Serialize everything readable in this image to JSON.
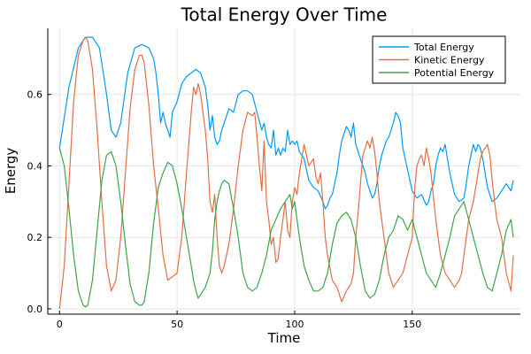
{
  "chart_data": {
    "type": "line",
    "title": "Total Energy Over Time",
    "xlabel": "Time",
    "ylabel": "Energy",
    "xlim": [
      -5,
      196
    ],
    "ylim": [
      -0.015,
      0.785
    ],
    "xticks": [
      0,
      50,
      100,
      150
    ],
    "yticks": [
      0.0,
      0.2,
      0.4,
      0.6
    ],
    "x_tick_labels": [
      "0",
      "50",
      "100",
      "150"
    ],
    "y_tick_labels": [
      "0.0",
      "0.2",
      "0.4",
      "0.6"
    ],
    "grid": true,
    "legend_position": "top-right",
    "series": [
      {
        "name": "Total Energy",
        "color": "#009AFA",
        "x": [
          0,
          4,
          8,
          11,
          14,
          17,
          20,
          22,
          24,
          26,
          29,
          32,
          35,
          38,
          40,
          41,
          42,
          43,
          44,
          45,
          46,
          47,
          48,
          50,
          52,
          54,
          56,
          58,
          60,
          61,
          62,
          63,
          64,
          65,
          66,
          67,
          68,
          69,
          70,
          72,
          74,
          76,
          78,
          80,
          82,
          84,
          86,
          87,
          88,
          89,
          90,
          91,
          92,
          93,
          94,
          95,
          96,
          97,
          98,
          99,
          100,
          101,
          102,
          103,
          104,
          106,
          108,
          110,
          112,
          113,
          114,
          115,
          116,
          117,
          118,
          119,
          120,
          121,
          122,
          123,
          124,
          125,
          126,
          128,
          130,
          131,
          132,
          133,
          134,
          135,
          136,
          137,
          138,
          139,
          140,
          141,
          142,
          143,
          144,
          145,
          146,
          147,
          148,
          149,
          150,
          152,
          154,
          156,
          157,
          158,
          159,
          160,
          161,
          162,
          163,
          164,
          165,
          166,
          168,
          170,
          172,
          173,
          174,
          175,
          176,
          177,
          178,
          179,
          180,
          181,
          182,
          184,
          186,
          188,
          190,
          192,
          193
        ],
        "values": [
          0.45,
          0.62,
          0.73,
          0.76,
          0.76,
          0.73,
          0.6,
          0.5,
          0.48,
          0.52,
          0.66,
          0.73,
          0.74,
          0.73,
          0.7,
          0.66,
          0.6,
          0.52,
          0.55,
          0.52,
          0.5,
          0.48,
          0.55,
          0.58,
          0.63,
          0.65,
          0.66,
          0.67,
          0.66,
          0.64,
          0.62,
          0.57,
          0.5,
          0.54,
          0.48,
          0.46,
          0.47,
          0.5,
          0.52,
          0.56,
          0.55,
          0.6,
          0.61,
          0.61,
          0.6,
          0.55,
          0.5,
          0.52,
          0.48,
          0.46,
          0.45,
          0.5,
          0.43,
          0.45,
          0.43,
          0.45,
          0.44,
          0.5,
          0.46,
          0.47,
          0.46,
          0.47,
          0.44,
          0.43,
          0.42,
          0.36,
          0.34,
          0.33,
          0.3,
          0.28,
          0.29,
          0.31,
          0.32,
          0.35,
          0.38,
          0.43,
          0.47,
          0.49,
          0.51,
          0.5,
          0.48,
          0.52,
          0.46,
          0.42,
          0.38,
          0.35,
          0.33,
          0.31,
          0.32,
          0.35,
          0.4,
          0.43,
          0.45,
          0.47,
          0.48,
          0.5,
          0.52,
          0.55,
          0.54,
          0.52,
          0.45,
          0.42,
          0.39,
          0.36,
          0.33,
          0.31,
          0.32,
          0.29,
          0.3,
          0.33,
          0.35,
          0.4,
          0.43,
          0.45,
          0.44,
          0.46,
          0.42,
          0.38,
          0.32,
          0.3,
          0.31,
          0.35,
          0.4,
          0.43,
          0.46,
          0.44,
          0.46,
          0.45,
          0.42,
          0.38,
          0.34,
          0.3,
          0.31,
          0.33,
          0.35,
          0.33,
          0.36
        ]
      },
      {
        "name": "Kinetic Energy",
        "color": "#E26F46",
        "x": [
          0,
          2,
          4,
          6,
          8,
          10,
          11,
          12,
          14,
          16,
          18,
          20,
          22,
          24,
          26,
          28,
          30,
          32,
          34,
          35,
          36,
          38,
          40,
          42,
          44,
          46,
          48,
          50,
          52,
          54,
          56,
          57,
          58,
          59,
          60,
          61,
          62,
          63,
          64,
          65,
          66,
          67,
          68,
          69,
          70,
          72,
          74,
          76,
          78,
          80,
          82,
          83,
          84,
          85,
          86,
          87,
          88,
          89,
          90,
          91,
          92,
          93,
          94,
          95,
          96,
          97,
          98,
          99,
          100,
          101,
          102,
          104,
          106,
          108,
          109,
          110,
          111,
          112,
          113,
          114,
          116,
          118,
          120,
          122,
          124,
          125,
          126,
          127,
          128,
          129,
          130,
          131,
          132,
          133,
          134,
          135,
          136,
          138,
          140,
          142,
          144,
          146,
          148,
          150,
          151,
          152,
          153,
          154,
          155,
          156,
          157,
          158,
          160,
          162,
          164,
          166,
          168,
          169,
          170,
          171,
          172,
          173,
          174,
          176,
          178,
          179,
          180,
          181,
          182,
          183,
          184,
          185,
          186,
          188,
          190,
          192,
          193
        ],
        "values": [
          0.0,
          0.12,
          0.35,
          0.58,
          0.71,
          0.75,
          0.76,
          0.75,
          0.67,
          0.5,
          0.3,
          0.12,
          0.05,
          0.08,
          0.2,
          0.38,
          0.56,
          0.67,
          0.71,
          0.71,
          0.69,
          0.57,
          0.4,
          0.28,
          0.15,
          0.08,
          0.09,
          0.1,
          0.2,
          0.38,
          0.55,
          0.62,
          0.6,
          0.63,
          0.6,
          0.55,
          0.5,
          0.42,
          0.3,
          0.27,
          0.32,
          0.2,
          0.12,
          0.1,
          0.12,
          0.18,
          0.28,
          0.4,
          0.5,
          0.55,
          0.54,
          0.55,
          0.48,
          0.4,
          0.33,
          0.47,
          0.3,
          0.25,
          0.18,
          0.2,
          0.13,
          0.14,
          0.2,
          0.25,
          0.3,
          0.22,
          0.2,
          0.3,
          0.34,
          0.32,
          0.38,
          0.46,
          0.4,
          0.42,
          0.37,
          0.35,
          0.38,
          0.3,
          0.2,
          0.15,
          0.08,
          0.06,
          0.02,
          0.05,
          0.07,
          0.1,
          0.2,
          0.27,
          0.35,
          0.43,
          0.45,
          0.47,
          0.45,
          0.48,
          0.44,
          0.38,
          0.3,
          0.2,
          0.1,
          0.06,
          0.08,
          0.1,
          0.15,
          0.2,
          0.33,
          0.4,
          0.42,
          0.43,
          0.4,
          0.45,
          0.42,
          0.38,
          0.25,
          0.15,
          0.1,
          0.08,
          0.06,
          0.07,
          0.08,
          0.1,
          0.15,
          0.2,
          0.25,
          0.3,
          0.38,
          0.42,
          0.44,
          0.45,
          0.46,
          0.43,
          0.36,
          0.3,
          0.25,
          0.2,
          0.1,
          0.05,
          0.15
        ]
      },
      {
        "name": "Potential Energy",
        "color": "#3DA44D",
        "x": [
          0,
          2,
          4,
          6,
          8,
          10,
          11,
          12,
          14,
          16,
          18,
          20,
          22,
          24,
          26,
          28,
          30,
          32,
          34,
          35,
          36,
          38,
          40,
          42,
          44,
          46,
          48,
          50,
          52,
          54,
          56,
          57,
          58,
          59,
          60,
          61,
          62,
          63,
          64,
          65,
          66,
          67,
          68,
          69,
          70,
          72,
          74,
          76,
          78,
          80,
          82,
          84,
          86,
          88,
          90,
          92,
          94,
          96,
          98,
          99,
          100,
          101,
          102,
          104,
          106,
          108,
          110,
          112,
          114,
          116,
          118,
          120,
          122,
          124,
          126,
          128,
          130,
          132,
          134,
          136,
          138,
          140,
          142,
          144,
          146,
          148,
          150,
          152,
          154,
          156,
          158,
          160,
          162,
          164,
          166,
          168,
          170,
          172,
          174,
          176,
          178,
          180,
          182,
          184,
          186,
          188,
          190,
          192,
          193
        ],
        "values": [
          0.45,
          0.4,
          0.28,
          0.15,
          0.05,
          0.01,
          0.005,
          0.01,
          0.08,
          0.22,
          0.36,
          0.43,
          0.44,
          0.4,
          0.3,
          0.18,
          0.07,
          0.02,
          0.01,
          0.01,
          0.02,
          0.1,
          0.24,
          0.34,
          0.38,
          0.41,
          0.4,
          0.35,
          0.28,
          0.2,
          0.12,
          0.08,
          0.05,
          0.03,
          0.04,
          0.05,
          0.06,
          0.08,
          0.1,
          0.16,
          0.25,
          0.3,
          0.33,
          0.35,
          0.36,
          0.35,
          0.28,
          0.2,
          0.1,
          0.06,
          0.05,
          0.06,
          0.1,
          0.15,
          0.22,
          0.25,
          0.28,
          0.3,
          0.32,
          0.28,
          0.3,
          0.25,
          0.2,
          0.12,
          0.08,
          0.05,
          0.05,
          0.06,
          0.1,
          0.18,
          0.24,
          0.26,
          0.27,
          0.25,
          0.2,
          0.12,
          0.05,
          0.03,
          0.04,
          0.08,
          0.15,
          0.2,
          0.22,
          0.26,
          0.25,
          0.22,
          0.25,
          0.2,
          0.15,
          0.1,
          0.08,
          0.06,
          0.1,
          0.15,
          0.2,
          0.26,
          0.28,
          0.3,
          0.25,
          0.2,
          0.15,
          0.1,
          0.06,
          0.05,
          0.1,
          0.15,
          0.22,
          0.25,
          0.2
        ]
      }
    ]
  }
}
